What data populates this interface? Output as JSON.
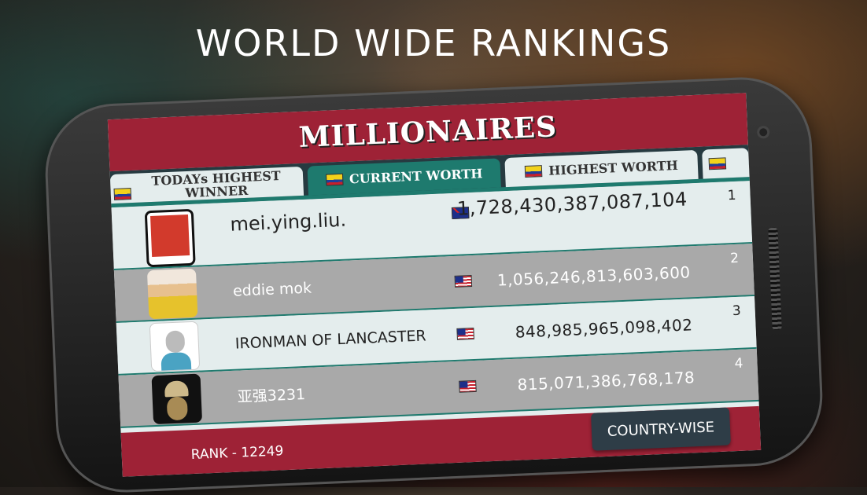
{
  "headline": "WORLD WIDE RANKINGS",
  "screen_title": "MILLIONAIRES",
  "tabs": [
    {
      "label": "TODAYs HIGHEST WINNER",
      "flag": "colombia"
    },
    {
      "label": "CURRENT WORTH",
      "flag": "colombia",
      "active": true
    },
    {
      "label": "HIGHEST WORTH",
      "flag": "colombia"
    },
    {
      "label": "",
      "flag": "colombia"
    }
  ],
  "rows": [
    {
      "name": "mei.ying.liu.",
      "flag": "australia",
      "worth": "1,728,430,387,087,104",
      "rank": "1"
    },
    {
      "name": "eddie mok",
      "flag": "malaysia",
      "worth": "1,056,246,813,603,600",
      "rank": "2"
    },
    {
      "name": "IRONMAN OF LANCASTER",
      "flag": "malaysia",
      "worth": "848,985,965,098,402",
      "rank": "3"
    },
    {
      "name": "亚强3231",
      "flag": "malaysia",
      "worth": "815,071,386,768,178",
      "rank": "4"
    }
  ],
  "footer": {
    "rank": "RANK - 12249",
    "country_button": "COUNTRY-WISE"
  },
  "colors": {
    "maroon": "#9e2236",
    "teal": "#1e7a6e",
    "button": "#2e3d47"
  }
}
